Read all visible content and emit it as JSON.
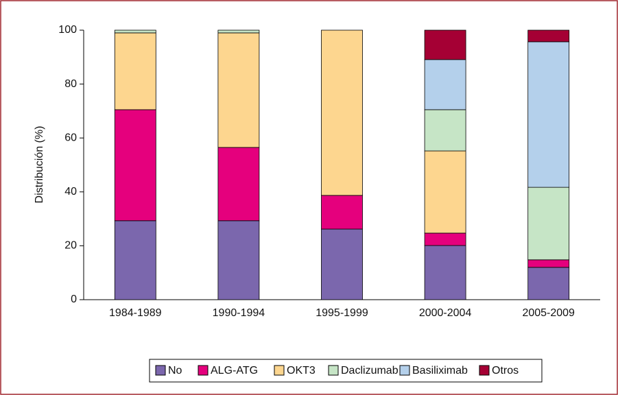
{
  "chart_data": {
    "type": "stacked-bar",
    "y_label": "Distribución (%)",
    "categories": [
      "1984-1989",
      "1990-1994",
      "1995-1999",
      "2000-2004",
      "2005-2009"
    ],
    "series": [
      {
        "name": "No",
        "color": "#7b67ad",
        "values": [
          29.3,
          29.3,
          26.2,
          20.1,
          12.0
        ]
      },
      {
        "name": "ALG-ATG",
        "color": "#e5007d",
        "values": [
          41.2,
          27.2,
          12.5,
          4.6,
          2.8
        ]
      },
      {
        "name": "OKT3",
        "color": "#fdd68f",
        "values": [
          28.5,
          42.5,
          61.3,
          30.5,
          0
        ]
      },
      {
        "name": "Daclizumab",
        "color": "#c6e5c6",
        "values": [
          1.0,
          1.0,
          0,
          15.3,
          26.9
        ]
      },
      {
        "name": "Basiliximab",
        "color": "#b4d0eb",
        "values": [
          0,
          0,
          0,
          18.6,
          54.0
        ]
      },
      {
        "name": "Otros",
        "color": "#a50034",
        "values": [
          0,
          0,
          0,
          10.9,
          4.3
        ]
      }
    ],
    "ylim": [
      0,
      100
    ],
    "yticks": [
      0,
      20,
      40,
      60,
      80,
      100
    ]
  }
}
